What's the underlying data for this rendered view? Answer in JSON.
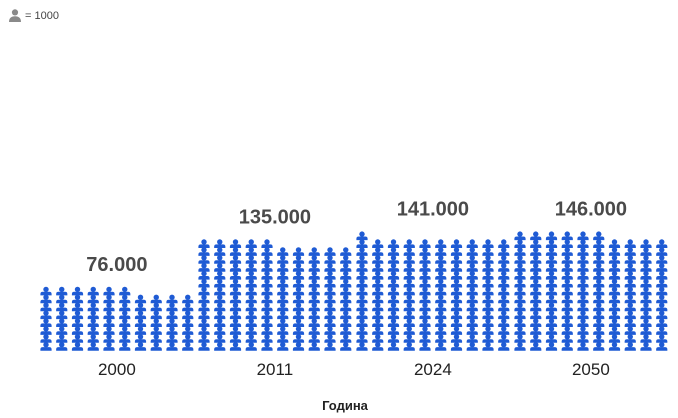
{
  "legend": {
    "icon": "person-icon",
    "text": "= 1000"
  },
  "colors": {
    "icon": "#1f5bd4",
    "legend_icon": "#8a8a8a",
    "value_label": "#4a4a4a",
    "tick": "#222222"
  },
  "chart_data": {
    "type": "pictogram",
    "unit_per_icon": 1000,
    "categories": [
      "2000",
      "2011",
      "2024",
      "2050"
    ],
    "values": [
      76000,
      135000,
      141000,
      146000
    ],
    "value_labels": [
      "76.000",
      "135.000",
      "141.000",
      "146.000"
    ],
    "xlabel": "Година",
    "ylabel": "",
    "title": ""
  }
}
